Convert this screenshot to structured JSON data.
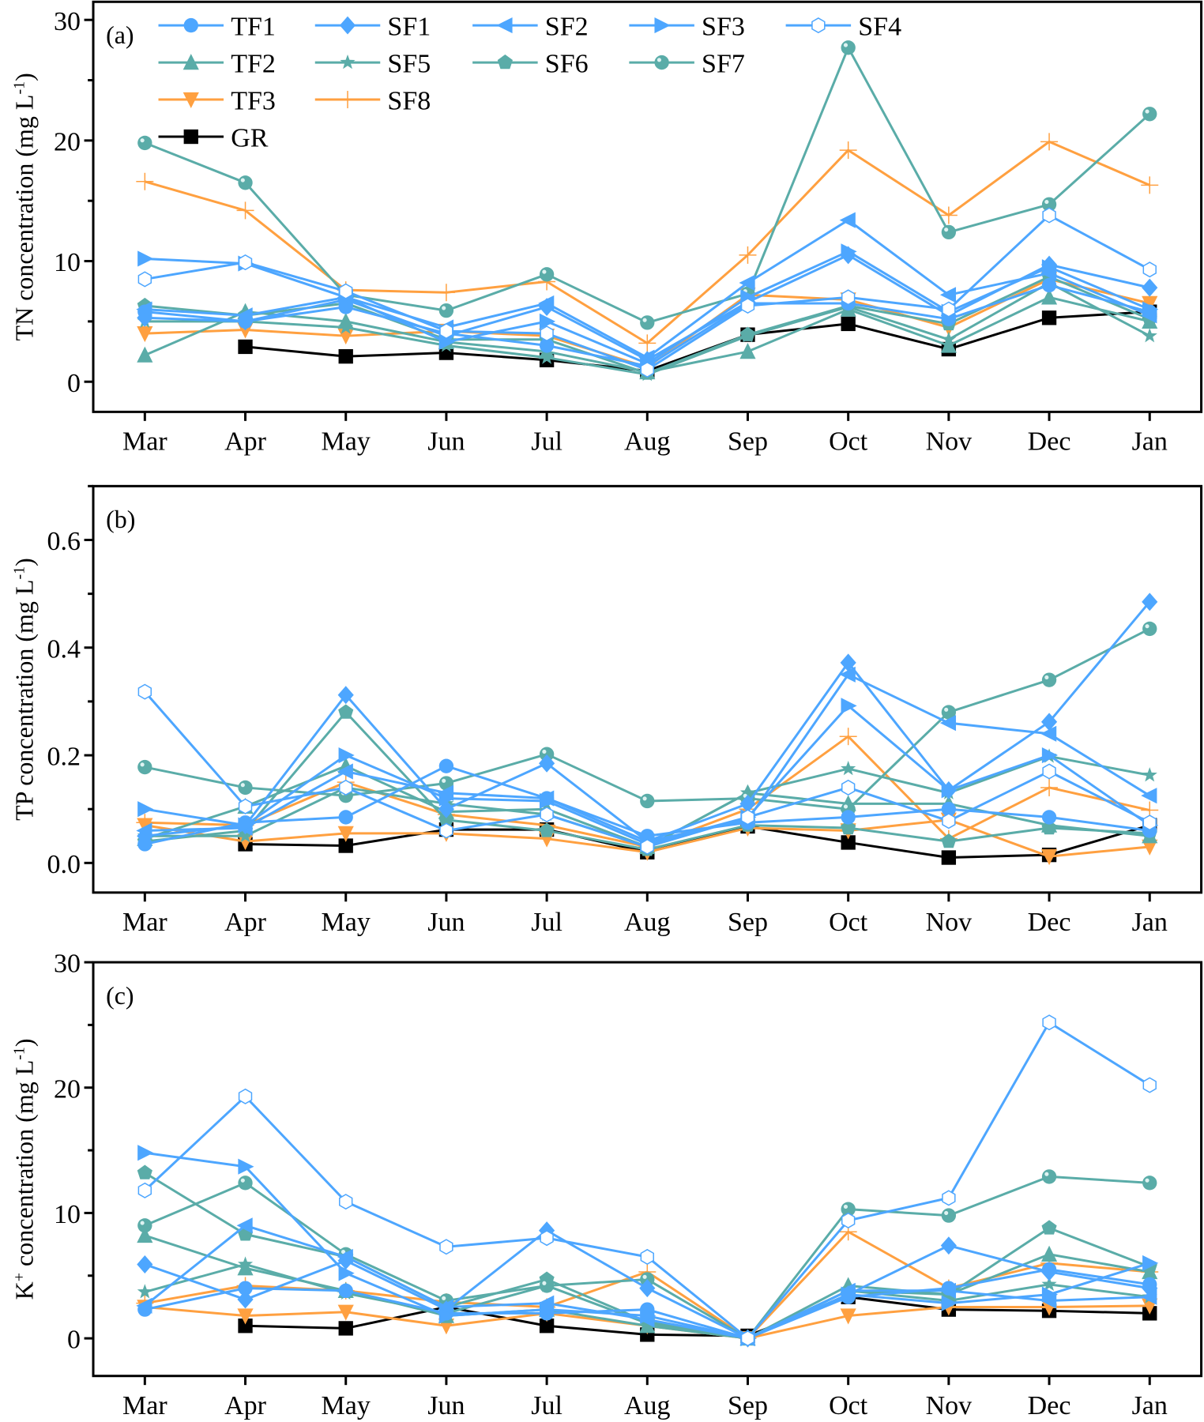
{
  "chart_data": [
    {
      "type": "line",
      "panel_label": "(a)",
      "ylabel": "TN concentration (mg L-1)",
      "ylabel_main": "TN concentration (mg L",
      "ylabel_sup": "-1",
      "ylabel_end": ")",
      "xlabel": "",
      "ylim": [
        -2.5,
        31.5
      ],
      "yticks": [
        0,
        10,
        20,
        30
      ],
      "grid": false,
      "legend": "top-left",
      "categories": [
        "Mar",
        "Apr",
        "May",
        "Jun",
        "Jul",
        "Aug",
        "Sep",
        "Oct",
        "Nov",
        "Dec",
        "Jan"
      ],
      "series": [
        {
          "name": "TF1",
          "values": [
            5.8,
            5.0,
            6.2,
            4.0,
            3.0,
            1.3,
            6.5,
            6.5,
            5.2,
            8.0,
            5.8
          ]
        },
        {
          "name": "SF1",
          "values": [
            5.3,
            5.0,
            6.8,
            3.8,
            6.2,
            1.8,
            6.6,
            10.5,
            5.5,
            9.7,
            7.8
          ]
        },
        {
          "name": "SF2",
          "values": [
            6.0,
            5.5,
            7.0,
            4.5,
            6.5,
            2.0,
            8.2,
            13.4,
            7.2,
            9.0,
            5.5
          ]
        },
        {
          "name": "SF3",
          "values": [
            10.2,
            9.8,
            7.0,
            3.3,
            5.0,
            1.5,
            7.0,
            10.8,
            5.8,
            9.5,
            6.0
          ]
        },
        {
          "name": "SF4",
          "values": [
            8.5,
            9.9,
            7.5,
            4.2,
            4.0,
            1.0,
            6.3,
            7.0,
            6.0,
            13.8,
            9.3
          ]
        },
        {
          "name": "TF2",
          "values": [
            2.2,
            5.8,
            5.0,
            3.3,
            2.5,
            0.8,
            2.5,
            6.0,
            3.0,
            7.0,
            5.0
          ]
        },
        {
          "name": "SF5",
          "values": [
            5.0,
            5.0,
            4.5,
            3.0,
            2.0,
            0.6,
            3.8,
            6.2,
            3.5,
            8.2,
            3.8
          ]
        },
        {
          "name": "SF6",
          "values": [
            6.3,
            5.5,
            6.5,
            3.5,
            3.5,
            0.7,
            3.9,
            6.3,
            4.8,
            8.7,
            5.2
          ]
        },
        {
          "name": "SF7",
          "values": [
            19.8,
            16.5,
            7.2,
            5.9,
            8.9,
            4.9,
            7.3,
            27.7,
            12.4,
            14.7,
            22.2
          ]
        },
        {
          "name": "TF3",
          "values": [
            4.0,
            4.3,
            3.8,
            4.2,
            3.8,
            1.2,
            7.2,
            6.8,
            4.5,
            8.5,
            6.5
          ]
        },
        {
          "name": "SF8",
          "values": [
            16.6,
            14.2,
            7.6,
            7.4,
            8.3,
            3.2,
            10.5,
            19.2,
            13.8,
            19.9,
            16.3
          ]
        },
        {
          "name": "GR",
          "values": [
            null,
            2.9,
            2.1,
            2.4,
            1.8,
            0.9,
            3.9,
            4.8,
            2.7,
            5.3,
            5.8
          ]
        }
      ]
    },
    {
      "type": "line",
      "panel_label": "(b)",
      "ylabel": "TP concentration (mg L-1)",
      "ylabel_main": "TP concentration (mg L",
      "ylabel_sup": "-1",
      "ylabel_end": ")",
      "xlabel": "",
      "ylim": [
        -0.055,
        0.7
      ],
      "yticks": [
        0.0,
        0.2,
        0.4,
        0.6
      ],
      "ytick_labels": [
        "0.0",
        "0.2",
        "0.4",
        "0.6"
      ],
      "grid": false,
      "categories": [
        "Mar",
        "Apr",
        "May",
        "Jun",
        "Jul",
        "Aug",
        "Sep",
        "Oct",
        "Nov",
        "Dec",
        "Jan"
      ],
      "series": [
        {
          "name": "TF1",
          "values": [
            0.035,
            0.075,
            0.085,
            0.18,
            0.12,
            0.05,
            0.075,
            0.085,
            0.1,
            0.085,
            0.06
          ]
        },
        {
          "name": "SF1",
          "values": [
            0.05,
            0.07,
            0.312,
            0.1,
            0.185,
            0.04,
            0.11,
            0.372,
            0.135,
            0.262,
            0.485
          ]
        },
        {
          "name": "SF2",
          "values": [
            0.06,
            0.065,
            0.17,
            0.13,
            0.12,
            0.04,
            0.08,
            0.35,
            0.26,
            0.24,
            0.125
          ]
        },
        {
          "name": "SF3",
          "values": [
            0.1,
            0.07,
            0.2,
            0.12,
            0.115,
            0.035,
            0.085,
            0.292,
            0.135,
            0.2,
            0.07
          ]
        },
        {
          "name": "SF4",
          "values": [
            0.318,
            0.105,
            0.14,
            0.06,
            0.09,
            0.03,
            0.085,
            0.14,
            0.078,
            0.17,
            0.075
          ]
        },
        {
          "name": "TF2",
          "values": [
            0.045,
            0.105,
            0.18,
            0.095,
            0.1,
            0.03,
            0.13,
            0.11,
            0.11,
            0.07,
            0.05
          ]
        },
        {
          "name": "SF5",
          "values": [
            0.05,
            0.05,
            0.14,
            0.11,
            0.09,
            0.03,
            0.13,
            0.175,
            0.13,
            0.198,
            0.163
          ]
        },
        {
          "name": "SF6",
          "values": [
            0.04,
            0.06,
            0.28,
            0.08,
            0.06,
            0.025,
            0.07,
            0.065,
            0.04,
            0.065,
            0.055
          ]
        },
        {
          "name": "SF7",
          "values": [
            0.178,
            0.14,
            0.125,
            0.148,
            0.202,
            0.115,
            0.12,
            0.1,
            0.28,
            0.34,
            0.435
          ]
        },
        {
          "name": "TF3",
          "values": [
            0.07,
            0.04,
            0.055,
            0.055,
            0.045,
            0.02,
            0.065,
            0.06,
            0.08,
            0.012,
            0.03
          ]
        },
        {
          "name": "SF8",
          "values": [
            0.075,
            0.07,
            0.15,
            0.09,
            0.07,
            0.03,
            0.1,
            0.235,
            0.045,
            0.14,
            0.098
          ]
        },
        {
          "name": "GR",
          "values": [
            null,
            0.035,
            0.032,
            0.062,
            0.062,
            0.02,
            0.068,
            0.038,
            0.01,
            0.015,
            0.07
          ]
        }
      ]
    },
    {
      "type": "line",
      "panel_label": "(c)",
      "ylabel": "K+ concentration (mg L-1)",
      "ylabel_main": "K",
      "ylabel_plus": "+",
      "ylabel_mid": " concentration (mg L",
      "ylabel_sup": "-1",
      "ylabel_end": ")",
      "xlabel": "",
      "ylim": [
        -3,
        30
      ],
      "yticks": [
        0,
        10,
        20,
        30
      ],
      "grid": false,
      "categories": [
        "Mar",
        "Apr",
        "May",
        "Jun",
        "Jul",
        "Aug",
        "Sep",
        "Oct",
        "Nov",
        "Dec",
        "Jan"
      ],
      "series": [
        {
          "name": "TF1",
          "values": [
            2.3,
            4.0,
            3.8,
            2.0,
            2.0,
            2.3,
            0.0,
            3.3,
            4.0,
            5.5,
            4.3
          ]
        },
        {
          "name": "SF1",
          "values": [
            5.9,
            3.1,
            6.2,
            2.3,
            8.6,
            4.0,
            0.0,
            3.5,
            7.4,
            5.3,
            4.0
          ]
        },
        {
          "name": "SF2",
          "values": [
            2.6,
            9.0,
            6.5,
            2.5,
            2.8,
            1.5,
            0.0,
            3.8,
            3.8,
            3.0,
            3.3
          ]
        },
        {
          "name": "SF3",
          "values": [
            14.8,
            13.7,
            5.2,
            1.8,
            2.3,
            1.8,
            0.0,
            3.5,
            2.8,
            3.5,
            6.0
          ]
        },
        {
          "name": "SF4",
          "values": [
            11.8,
            19.3,
            10.9,
            7.3,
            8.0,
            6.5,
            0.0,
            9.4,
            11.2,
            25.2,
            20.2
          ]
        },
        {
          "name": "TF2",
          "values": [
            8.2,
            5.6,
            3.8,
            1.8,
            2.3,
            1.0,
            0.0,
            4.2,
            3.5,
            6.7,
            5.3
          ]
        },
        {
          "name": "SF5",
          "values": [
            3.7,
            5.9,
            3.6,
            2.0,
            4.2,
            1.2,
            0.0,
            3.8,
            3.0,
            4.3,
            3.3
          ]
        },
        {
          "name": "SF6",
          "values": [
            13.2,
            8.3,
            6.5,
            2.5,
            4.7,
            1.3,
            0.0,
            3.8,
            3.5,
            8.8,
            5.7
          ]
        },
        {
          "name": "SF7",
          "values": [
            9.0,
            12.4,
            6.7,
            3.0,
            4.2,
            4.7,
            0.0,
            10.3,
            9.8,
            12.9,
            12.4
          ]
        },
        {
          "name": "TF3",
          "values": [
            2.5,
            1.8,
            2.1,
            1.0,
            2.0,
            1.0,
            0.0,
            1.8,
            2.5,
            2.5,
            2.6
          ]
        },
        {
          "name": "SF8",
          "values": [
            2.8,
            4.2,
            3.8,
            2.9,
            2.5,
            5.3,
            0.0,
            8.5,
            4.0,
            6.0,
            5.3
          ]
        },
        {
          "name": "GR",
          "values": [
            null,
            1.0,
            0.8,
            2.5,
            1.0,
            0.3,
            0.2,
            3.3,
            2.3,
            2.2,
            2.0
          ]
        }
      ]
    }
  ],
  "legend": {
    "entries": [
      {
        "name": "TF1",
        "label": "TF1",
        "color": "#4da6ff",
        "marker": "circle",
        "row": 0,
        "col": 0
      },
      {
        "name": "SF1",
        "label": "SF1",
        "color": "#4da6ff",
        "marker": "diamond",
        "row": 0,
        "col": 1
      },
      {
        "name": "SF2",
        "label": "SF2",
        "color": "#4da6ff",
        "marker": "triangle-left",
        "row": 0,
        "col": 2
      },
      {
        "name": "SF3",
        "label": "SF3",
        "color": "#4da6ff",
        "marker": "triangle-right",
        "row": 0,
        "col": 3
      },
      {
        "name": "SF4",
        "label": "SF4",
        "color": "#4da6ff",
        "marker": "hexagon-open",
        "row": 0,
        "col": 4
      },
      {
        "name": "TF2",
        "label": "TF2",
        "color": "#5aaca8",
        "marker": "triangle-up",
        "row": 1,
        "col": 0
      },
      {
        "name": "SF5",
        "label": "SF5",
        "color": "#5aaca8",
        "marker": "star",
        "row": 1,
        "col": 1
      },
      {
        "name": "SF6",
        "label": "SF6",
        "color": "#5aaca8",
        "marker": "pentagon",
        "row": 1,
        "col": 2
      },
      {
        "name": "SF7",
        "label": "SF7",
        "color": "#5aaca8",
        "marker": "sphere",
        "row": 1,
        "col": 3
      },
      {
        "name": "TF3",
        "label": "TF3",
        "color": "#ffa040",
        "marker": "triangle-down",
        "row": 2,
        "col": 0
      },
      {
        "name": "SF8",
        "label": "SF8",
        "color": "#ffa040",
        "marker": "plus",
        "row": 2,
        "col": 1
      },
      {
        "name": "GR",
        "label": "GR",
        "color": "#000000",
        "marker": "square",
        "row": 3,
        "col": 0
      }
    ]
  }
}
